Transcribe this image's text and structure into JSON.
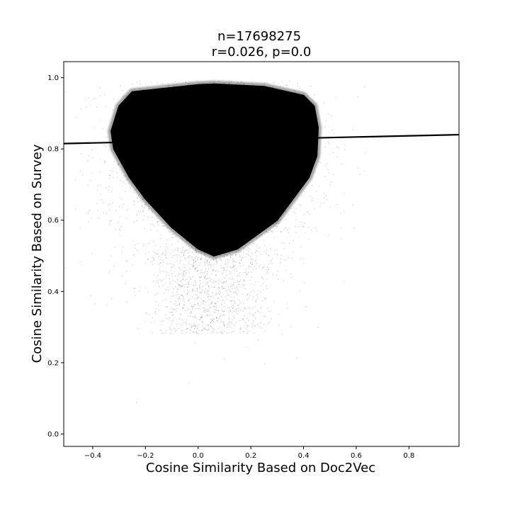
{
  "chart_data": {
    "type": "scatter",
    "title_line1": "n=17698275",
    "title_line2": "r=0.026, p=0.0",
    "xlabel": "Cosine Similarity Based on Doc2Vec",
    "ylabel": "Cosine Similarity Based on Survey",
    "xlim": [
      -0.51,
      0.99
    ],
    "ylim": [
      -0.035,
      1.045
    ],
    "x_ticks": [
      -0.4,
      -0.2,
      0.0,
      0.2,
      0.4,
      0.6,
      0.8
    ],
    "x_tick_labels": [
      "−0.4",
      "−0.2",
      "0.0",
      "0.2",
      "0.4",
      "0.6",
      "0.8"
    ],
    "y_ticks": [
      0.0,
      0.2,
      0.4,
      0.6,
      0.8,
      1.0
    ],
    "y_tick_labels": [
      "0.0",
      "0.2",
      "0.4",
      "0.6",
      "0.8",
      "1.0"
    ],
    "point_color": "#000000",
    "regression_line": {
      "x": [
        -0.51,
        0.99
      ],
      "y": [
        0.815,
        0.84
      ],
      "color": "#000000"
    },
    "dense_region_outline": {
      "x": [
        -0.33,
        -0.3,
        -0.25,
        0.0,
        0.06,
        0.25,
        0.4,
        0.44,
        0.455,
        0.45,
        0.42,
        0.3,
        0.15,
        0.06,
        0.0,
        -0.1,
        -0.2,
        -0.26,
        -0.32
      ],
      "y": [
        0.85,
        0.92,
        0.96,
        0.98,
        0.982,
        0.975,
        0.95,
        0.92,
        0.86,
        0.78,
        0.72,
        0.6,
        0.52,
        0.5,
        0.52,
        0.58,
        0.66,
        0.72,
        0.8
      ]
    },
    "grid": false,
    "legend": "none"
  }
}
